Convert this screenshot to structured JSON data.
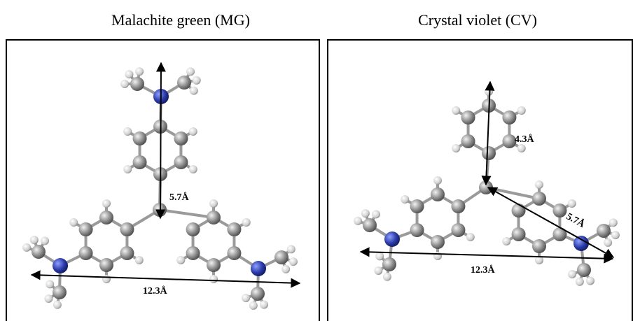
{
  "panels": [
    {
      "title": "Malachite green (MG)",
      "labels": [
        "5.7Å",
        "12.3Å"
      ]
    },
    {
      "title": "Crystal violet (CV)",
      "labels": [
        "4.3Å",
        "5.7Å",
        "12.3Å"
      ]
    }
  ]
}
